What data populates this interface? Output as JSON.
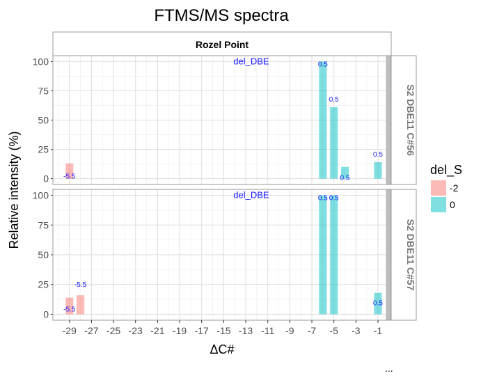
{
  "chart_data": {
    "type": "bar",
    "title": "FTMS/MS spectra",
    "xlabel": "ΔC#",
    "ylabel": "Relative intensity (%)",
    "xlim": [
      -30.5,
      0.2
    ],
    "ylim": [
      -5,
      105
    ],
    "x_ticks": [
      -29,
      -27,
      -25,
      -23,
      -21,
      -19,
      -17,
      -15,
      -13,
      -11,
      -9,
      -7,
      -5,
      -3,
      -1
    ],
    "y_ticks": [
      0,
      25,
      50,
      75,
      100
    ],
    "grid": true,
    "facet_column": "Rozel Point",
    "highlight_x": 0,
    "legend": {
      "title": "del_S",
      "position": "right",
      "entries": [
        {
          "label": "-2",
          "color": "#F8766D"
        },
        {
          "label": "0",
          "color": "#00BFC4"
        }
      ]
    },
    "panels": [
      {
        "strip": "S2 DBE11 C#56",
        "annotation": "del_DBE",
        "bars": [
          {
            "x": -29,
            "y": 13,
            "del_S": "-2",
            "label": "-5.5"
          },
          {
            "x": -6,
            "y": 100,
            "del_S": "0",
            "label": "0.5"
          },
          {
            "x": -5,
            "y": 61,
            "del_S": "0",
            "label": "0.5"
          },
          {
            "x": -4,
            "y": 10,
            "del_S": "0",
            "label": "0.5"
          },
          {
            "x": -1,
            "y": 14,
            "del_S": "0",
            "label": "0.5"
          }
        ]
      },
      {
        "strip": "S2 DBE11 C#57",
        "annotation": "del_DBE",
        "bars": [
          {
            "x": -29,
            "y": 14,
            "del_S": "-2",
            "label": "-5.5"
          },
          {
            "x": -28,
            "y": 16,
            "del_S": "-2",
            "label": "-5.5"
          },
          {
            "x": -6,
            "y": 100,
            "del_S": "0",
            "label": "0.5"
          },
          {
            "x": -5,
            "y": 100,
            "del_S": "0",
            "label": "0.5"
          },
          {
            "x": -1,
            "y": 18,
            "del_S": "0",
            "label": "0.5"
          }
        ]
      }
    ]
  },
  "footnote": "..."
}
